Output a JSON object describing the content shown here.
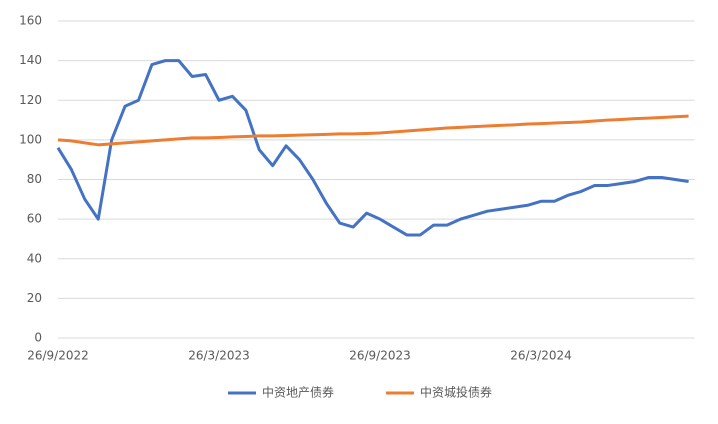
{
  "chart_data": {
    "type": "line",
    "categories": [
      "26/9/2022",
      null,
      null,
      null,
      null,
      null,
      null,
      null,
      null,
      null,
      null,
      null,
      "26/3/2023",
      null,
      null,
      null,
      null,
      null,
      null,
      null,
      null,
      null,
      null,
      null,
      "26/9/2023",
      null,
      null,
      null,
      null,
      null,
      null,
      null,
      null,
      null,
      null,
      null,
      "26/3/2024",
      null,
      null,
      null,
      null,
      null,
      null,
      null,
      null,
      null,
      null,
      null
    ],
    "series": [
      {
        "name": "中资地产债券",
        "color": "#4472c4",
        "values": [
          96,
          85,
          70,
          60,
          100,
          117,
          120,
          138,
          140,
          140,
          132,
          133,
          120,
          122,
          115,
          95,
          87,
          97,
          90,
          80,
          68,
          58,
          56,
          63,
          60,
          56,
          52,
          52,
          57,
          57,
          60,
          62,
          64,
          65,
          66,
          67,
          69,
          69,
          72,
          74,
          77,
          77,
          78,
          79,
          81,
          81,
          80,
          79
        ]
      },
      {
        "name": "中资城投债券",
        "color": "#ed7d31",
        "values": [
          100,
          99.5,
          98.5,
          97.5,
          98,
          98.5,
          99,
          99.5,
          100,
          100.5,
          101,
          101,
          101.2,
          101.5,
          101.7,
          102,
          102,
          102.2,
          102.4,
          102.6,
          102.8,
          103,
          103,
          103.2,
          103.5,
          104,
          104.5,
          105,
          105.5,
          106,
          106.3,
          106.7,
          107,
          107.3,
          107.6,
          108,
          108.2,
          108.5,
          108.8,
          109,
          109.5,
          110,
          110.3,
          110.7,
          111,
          111.3,
          111.7,
          112
        ]
      }
    ],
    "ylim": [
      0,
      160
    ],
    "yticks": [
      0,
      20,
      40,
      60,
      80,
      100,
      120,
      140,
      160
    ],
    "grid": true,
    "legend": "bottom"
  }
}
